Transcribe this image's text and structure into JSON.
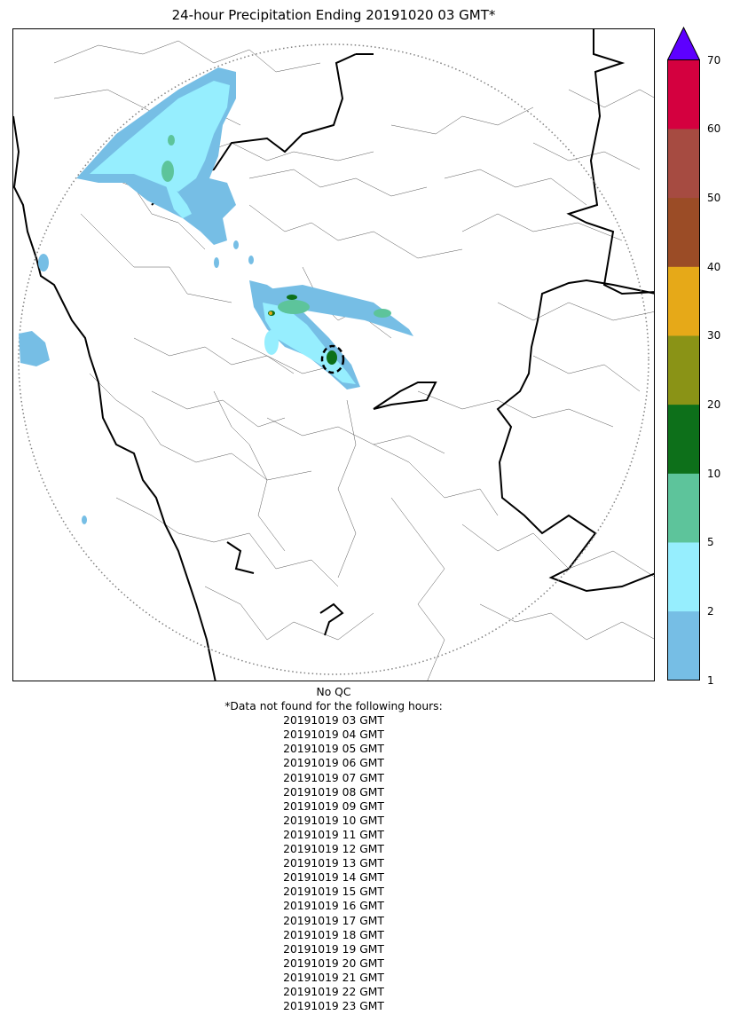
{
  "title": "24-hour Precipitation Ending 20191020 03 GMT*",
  "colorbar": {
    "labels": [
      "1",
      "2",
      "5",
      "10",
      "20",
      "30",
      "40",
      "50",
      "60",
      "70"
    ],
    "colors": [
      "#76bee5",
      "#96eefe",
      "#5dc49b",
      "#0d701a",
      "#8a9316",
      "#e6a918",
      "#9b4c26",
      "#a64b41",
      "#d4003f"
    ],
    "over_color": "#5d00ff"
  },
  "notes": {
    "qc": "No QC",
    "missing_header": "*Data not found for the following hours:",
    "missing_hours": [
      "20191019 03 GMT",
      "20191019 04 GMT",
      "20191019 05 GMT",
      "20191019 06 GMT",
      "20191019 07 GMT",
      "20191019 08 GMT",
      "20191019 09 GMT",
      "20191019 10 GMT",
      "20191019 11 GMT",
      "20191019 12 GMT",
      "20191019 13 GMT",
      "20191019 14 GMT",
      "20191019 15 GMT",
      "20191019 16 GMT",
      "20191019 17 GMT",
      "20191019 18 GMT",
      "20191019 19 GMT",
      "20191019 20 GMT",
      "20191019 21 GMT",
      "20191019 22 GMT",
      "20191019 23 GMT"
    ]
  }
}
